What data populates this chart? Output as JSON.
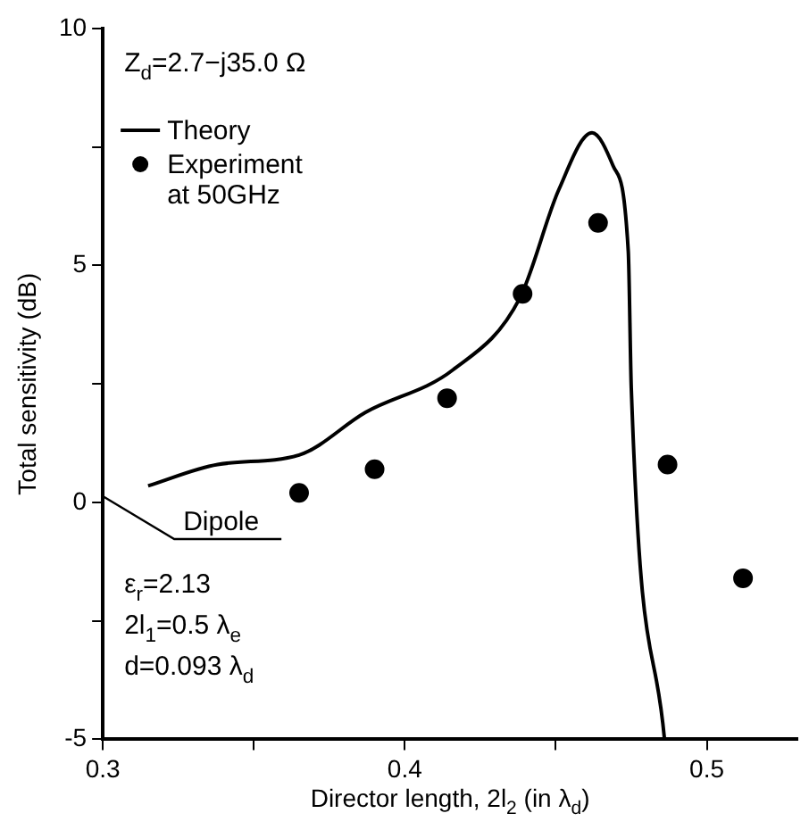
{
  "chart_data": {
    "type": "line",
    "xlabel": "Director length, 2l$_{2}$ (in λ$_{d}$)",
    "ylabel": "Total sensitivity (dB)",
    "xlim": [
      0.3,
      0.53
    ],
    "xticks": [
      0.3,
      {
        "value": 0.35,
        "label": null
      },
      0.4,
      {
        "value": 0.45,
        "label": null
      },
      0.5
    ],
    "ylim": [
      -5,
      10
    ],
    "yticks": [
      -5,
      {
        "value": -2.5,
        "label": null
      },
      0,
      {
        "value": 2.5,
        "label": null
      },
      5,
      {
        "value": 7.5,
        "label": null
      },
      10
    ],
    "grid": false,
    "legend": "top left",
    "series": [
      {
        "name": "Theory",
        "color": "#000000",
        "marker": "none",
        "x": [
          0.315,
          0.338,
          0.365,
          0.387,
          0.416,
          0.438,
          0.451,
          0.462,
          0.469,
          0.474,
          0.475,
          0.486
        ],
        "values": [
          0.35,
          0.8,
          1.0,
          1.9,
          2.8,
          4.3,
          6.6,
          7.8,
          7.1,
          5.3,
          2.4,
          -5
        ]
      },
      {
        "name": "Experiment at 50GHz",
        "type": "scatter",
        "color": "#000000",
        "marker": "circle",
        "x": [
          0.365,
          0.39,
          0.414,
          0.439,
          0.464,
          0.487,
          0.512
        ],
        "values": [
          0.2,
          0.7,
          2.2,
          4.4,
          5.9,
          0.8,
          -1.6
        ]
      }
    ],
    "annotations": [
      "Z$_{d}$=2.7−j35.0 Ω",
      "Dipole",
      "ε$_{r}$=2.13",
      "2l$_{1}$=0.5 λ$_{e}$",
      "d=0.093 λ$_{d}$"
    ]
  }
}
